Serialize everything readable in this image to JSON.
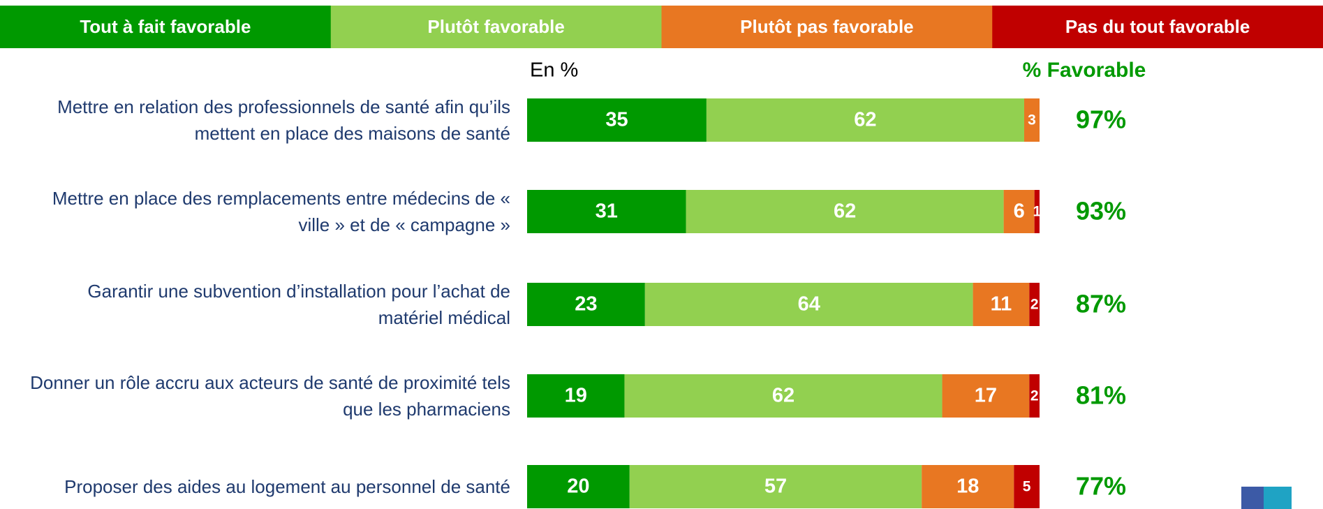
{
  "chart_data": {
    "type": "stacked-barh",
    "unit_label": "En %",
    "categories": [
      "Mettre en relation des professionnels de santé afin qu’ils mettent en place des maisons de santé",
      "Mettre en place des remplacements entre médecins de « ville » et de « campagne »",
      "Garantir une subvention d’installation pour l’achat de matériel médical",
      "Donner un rôle accru aux acteurs de santé de proximité tels que les pharmaciens",
      "Proposer des aides au logement au personnel de santé"
    ],
    "series": [
      {
        "name": "Tout à fait favorable",
        "color": "#009900",
        "values": [
          35,
          31,
          23,
          19,
          20
        ]
      },
      {
        "name": "Plutôt favorable",
        "color": "#92d050",
        "values": [
          62,
          62,
          64,
          62,
          57
        ]
      },
      {
        "name": "Plutôt pas favorable",
        "color": "#e87722",
        "values": [
          3,
          6,
          11,
          17,
          18
        ]
      },
      {
        "name": "Pas du tout favorable",
        "color": "#c00000",
        "values": [
          null,
          1,
          2,
          2,
          5
        ]
      }
    ],
    "xlim": [
      0,
      100
    ],
    "favorable": {
      "title": "% Favorable",
      "color": "#009900",
      "values": [
        97,
        93,
        87,
        81,
        77
      ],
      "value_labels": [
        "97%",
        "93%",
        "87%",
        "81%",
        "77%"
      ]
    }
  }
}
